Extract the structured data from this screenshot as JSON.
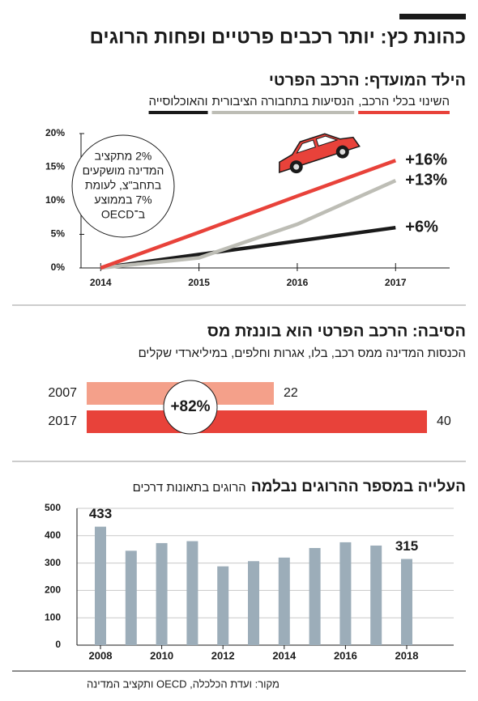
{
  "title": "כהונת כץ: יותר רכבים פרטיים ופחות הרוגים",
  "source": "מקור: ועדת הכלכלה, OECD ותקציב המדינה",
  "chart_data": [
    {
      "type": "line",
      "title": "הילד המועדף: הרכב הפרטי",
      "x": [
        2014,
        2015,
        2016,
        2017
      ],
      "xlim": [
        2013.8,
        2017.55
      ],
      "xticks": [
        2014,
        2015,
        2016,
        2017
      ],
      "ylim": [
        0,
        20
      ],
      "yticks": [
        {
          "value": 0,
          "label": "0%"
        },
        {
          "value": 5,
          "label": "5%"
        },
        {
          "value": 10,
          "label": "10%"
        },
        {
          "value": 15,
          "label": "15%"
        },
        {
          "value": 20,
          "label": "20%"
        }
      ],
      "series": [
        {
          "name": "השינוי בכלי הרכב,",
          "color": "#e8423a",
          "values": [
            0,
            5.3,
            10.7,
            16
          ],
          "value_labels": [
            null,
            null,
            null,
            "+16%"
          ]
        },
        {
          "name": "הנסיעות בתחבורה הציבורית",
          "color": "#bdbdb5",
          "values": [
            0,
            1.5,
            6.5,
            13
          ],
          "value_labels": [
            null,
            null,
            null,
            "+13%"
          ]
        },
        {
          "name": "והאוכלוסייה",
          "color": "#1a1a1a",
          "values": [
            0,
            2,
            4,
            6
          ],
          "value_labels": [
            null,
            null,
            null,
            "+6%"
          ]
        }
      ],
      "annotation": [
        "2% מתקציב",
        "המדינה מושקעים",
        "בתחב\"צ, לעומת",
        "7% בממוצע",
        "ב־OECD"
      ]
    },
    {
      "type": "hbar",
      "title": "הסיבה: הרכב הפרטי הוא בוננזת מס",
      "subtitle": "הכנסות המדינה ממס רכב, בלו, אגרות וחלפים, במיליארדי שקלים",
      "categories": [
        "2007",
        "2017"
      ],
      "values": [
        22,
        40
      ],
      "colors": [
        "#f4a08a",
        "#e8423a"
      ],
      "annotation": "+82%"
    },
    {
      "type": "bar",
      "title": "העלייה במספר ההרוגים נבלמה",
      "subtitle": "הרוגים בתאונות דרכים",
      "categories": [
        "2008",
        null,
        "2010",
        null,
        "2012",
        null,
        "2014",
        null,
        "2016",
        null,
        "2018"
      ],
      "values": [
        433,
        345,
        373,
        380,
        288,
        307,
        320,
        355,
        376,
        364,
        315
      ],
      "value_labels": [
        "433",
        null,
        null,
        null,
        null,
        null,
        null,
        null,
        null,
        null,
        "315"
      ],
      "color": "#9cadb9",
      "ylim": [
        0,
        500
      ],
      "yticks": [
        0,
        100,
        200,
        300,
        400,
        500
      ],
      "grid": true
    }
  ]
}
